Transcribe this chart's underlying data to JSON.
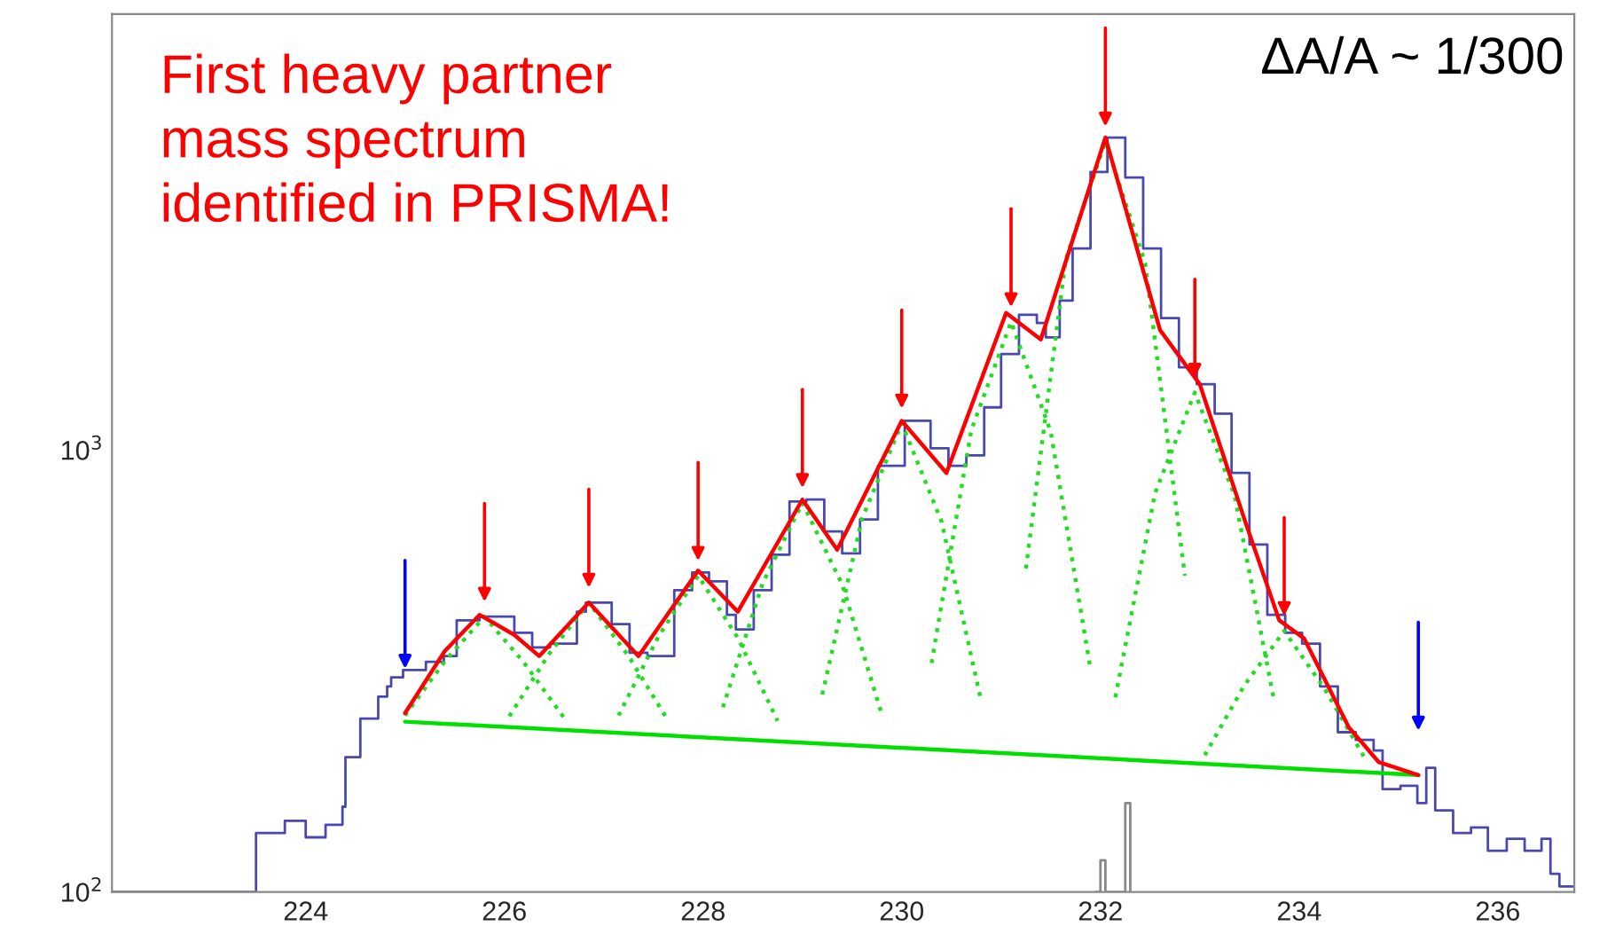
{
  "chart_data": {
    "type": "line",
    "log": "y",
    "xlim": [
      222.05,
      236.77
    ],
    "ylim": [
      100,
      9700
    ],
    "xticks": [
      224,
      226,
      228,
      230,
      232,
      234,
      236
    ],
    "yticks": [
      {
        "value": 100,
        "label": "10$^{2}$"
      },
      {
        "value": 1000,
        "label": "10$^{3}$"
      }
    ],
    "grid": false,
    "legend": false,
    "marker": "none",
    "annotations": [
      "First heavy partner\nmass spectrum\nidentified in PRISMA!",
      "ΔA/A ~ 1/300"
    ],
    "series": [
      {
        "type": "step",
        "color": "#4848b0",
        "x": [
          222.05,
          223.5,
          223.79,
          224.0,
          224.2,
          224.37,
          224.4,
          224.55,
          224.73,
          224.82,
          224.86,
          224.98,
          225.21,
          225.39,
          225.52,
          225.75,
          225.93,
          226.1,
          226.28,
          226.46,
          226.73,
          226.82,
          227.08,
          227.26,
          227.44,
          227.71,
          227.89,
          228.06,
          228.24,
          228.33,
          228.51,
          228.69,
          228.87,
          229.04,
          229.22,
          229.4,
          229.58,
          229.76,
          230.03,
          230.29,
          230.47,
          230.65,
          230.83,
          231.0,
          231.18,
          231.36,
          231.45,
          231.59,
          231.72,
          231.9,
          232.07,
          232.25,
          232.43,
          232.61,
          232.79,
          232.97,
          233.15,
          233.32,
          233.5,
          233.68,
          233.86,
          234.03,
          234.21,
          234.39,
          234.57,
          234.75,
          234.84,
          235.02,
          235.19,
          235.28,
          235.37,
          235.55,
          235.73,
          235.9,
          236.09,
          236.27,
          236.44,
          236.53,
          236.62,
          236.77
        ],
        "values": [
          100,
          136,
          145,
          133,
          142,
          156,
          202,
          247,
          277,
          292,
          306,
          318,
          332,
          342,
          412,
          420,
          420,
          386,
          358,
          365,
          431,
          452,
          404,
          348,
          342,
          482,
          529,
          505,
          424,
          393,
          482,
          580,
          765,
          773,
          655,
          584,
          697,
          922,
          1165,
          1010,
          922,
          973,
          1250,
          1650,
          2025,
          1940,
          1800,
          2180,
          2860,
          4260,
          5100,
          4140,
          2860,
          1990,
          1540,
          1410,
          1210,
          888,
          612,
          424,
          386,
          365,
          292,
          230,
          221,
          209,
          171,
          174,
          159,
          191,
          153,
          136,
          140,
          124,
          132,
          124,
          132,
          110,
          103,
          103
        ]
      },
      {
        "type": "step",
        "color": "#888888",
        "x": [
          231.95,
          232.0,
          232.05,
          232.2,
          232.25,
          232.3
        ],
        "values": [
          100,
          118,
          100,
          100,
          159,
          100
        ]
      },
      {
        "type": "line",
        "color": "#22dd22",
        "line_style": "dotted",
        "x": [
          225.0,
          225.4,
          225.8,
          226.2,
          226.6
        ],
        "values": [
          251,
          333,
          420,
          330,
          248
        ]
      },
      {
        "type": "line",
        "color": "#22dd22",
        "line_style": "dotted",
        "x": [
          226.05,
          226.45,
          226.85,
          227.25,
          227.65
        ],
        "values": [
          250,
          346,
          452,
          342,
          244
        ]
      },
      {
        "type": "line",
        "color": "#22dd22",
        "line_style": "dotted",
        "x": [
          227.15,
          227.55,
          227.95,
          228.35,
          228.75
        ],
        "values": [
          251,
          379,
          520,
          376,
          244
        ]
      },
      {
        "type": "line",
        "color": "#22dd22",
        "line_style": "dotted",
        "x": [
          228.2,
          228.6,
          229.0,
          229.4,
          229.8
        ],
        "values": [
          262,
          500,
          760,
          497,
          252
        ]
      },
      {
        "type": "line",
        "color": "#22dd22",
        "line_style": "dotted",
        "x": [
          229.2,
          229.6,
          230.0,
          230.4,
          230.8
        ],
        "values": [
          280,
          700,
          1150,
          690,
          270
        ]
      },
      {
        "type": "line",
        "color": "#22dd22",
        "line_style": "dotted",
        "x": [
          230.3,
          230.7,
          231.1,
          231.5,
          231.9
        ],
        "values": [
          330,
          1110,
          1950,
          1100,
          320
        ]
      },
      {
        "type": "line",
        "color": "#22dd22",
        "line_style": "dotted",
        "x": [
          231.25,
          231.65,
          232.05,
          232.45,
          232.85
        ],
        "values": [
          540,
          2700,
          5000,
          2650,
          520
        ]
      },
      {
        "type": "line",
        "color": "#22dd22",
        "line_style": "dotted",
        "x": [
          232.15,
          232.55,
          232.95,
          233.35,
          233.75
        ],
        "values": [
          276,
          800,
          1350,
          790,
          270
        ]
      },
      {
        "type": "line",
        "color": "#22dd22",
        "line_style": "dotted",
        "x": [
          233.05,
          233.45,
          233.85,
          234.25,
          234.65
        ],
        "values": [
          204,
          294,
          390,
          290,
          203
        ]
      },
      {
        "color": "#00e000",
        "line_style": "solid",
        "x": [
          225.0,
          235.2
        ],
        "values": [
          243,
          184
        ]
      },
      {
        "color": "#ff0000",
        "line_style": "solid",
        "x": [
          225.0,
          225.4,
          225.75,
          226.1,
          226.35,
          226.85,
          227.35,
          227.95,
          228.35,
          229.0,
          229.35,
          230.0,
          230.45,
          231.05,
          231.4,
          232.05,
          232.6,
          233.0,
          233.45,
          233.8,
          234.05,
          234.5,
          234.8,
          235.2
        ],
        "values": [
          254,
          351,
          424,
          382,
          342,
          452,
          342,
          534,
          431,
          773,
          595,
          1165,
          888,
          2045,
          1780,
          5100,
          1870,
          1410,
          697,
          412,
          375,
          236,
          197,
          184
        ]
      }
    ]
  }
}
